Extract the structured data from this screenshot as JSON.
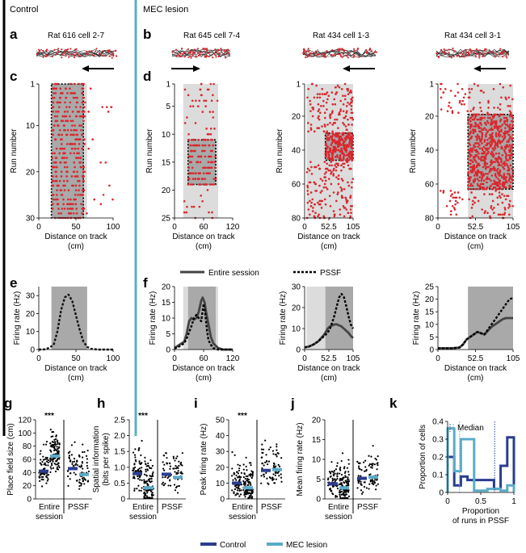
{
  "headers": {
    "control": "Control",
    "lesion": "MEC lesion"
  },
  "colors": {
    "spike_red": "#d9272e",
    "control_blue": "#2b3c8f",
    "lesion_cyan": "#5aacc8",
    "shade_light": "#dcdcdc",
    "shade_dark": "#a9a9a9"
  },
  "panel_letters": {
    "a": "a",
    "b": "b",
    "c": "c",
    "d": "d",
    "e": "e",
    "f": "f",
    "g": "g",
    "h": "h",
    "i": "i",
    "j": "j",
    "k": "k"
  },
  "cells": [
    {
      "title": "Rat 616 cell 2-7",
      "direction": "left"
    },
    {
      "title": "Rat 645 cell 7-4",
      "direction": "right"
    },
    {
      "title": "Rat 434 cell 1-3",
      "direction": "left"
    },
    {
      "title": "Rat 434 cell 3-1",
      "direction": "left"
    }
  ],
  "raster_plots": [
    {
      "ylabel": "Run number",
      "xlabel": "Distance on track",
      "xunit": "(cm)",
      "yticks": [
        "1",
        "10",
        "20",
        "30"
      ],
      "xticks": [
        "0",
        "50",
        "100"
      ],
      "ylim": [
        1,
        30
      ],
      "xlim": [
        0,
        100
      ]
    },
    {
      "ylabel": "Run number",
      "xlabel": "Distance on track",
      "xunit": "(cm)",
      "yticks": [
        "1",
        "5",
        "10",
        "15",
        "20",
        "25"
      ],
      "xticks": [
        "0",
        "60",
        "120"
      ],
      "ylim": [
        1,
        25
      ],
      "xlim": [
        0,
        120
      ]
    },
    {
      "ylabel": "Run number",
      "xlabel": "Distance on track",
      "xunit": "(cm)",
      "yticks": [
        "1",
        "20",
        "40",
        "60",
        "80"
      ],
      "xticks": [
        "0",
        "52.5",
        "105"
      ],
      "ylim": [
        1,
        80
      ],
      "xlim": [
        0,
        105
      ]
    },
    {
      "ylabel": "Run number",
      "xlabel": "Distance on track",
      "xunit": "(cm)",
      "yticks": [
        "1",
        "20",
        "40",
        "60",
        "80"
      ],
      "xticks": [
        "0",
        "52.5",
        "105"
      ],
      "ylim": [
        1,
        80
      ],
      "xlim": [
        0,
        105
      ]
    }
  ],
  "rate_legend": {
    "entire": "Entire session",
    "pssf": "PSSF"
  },
  "chart_data": [
    {
      "type": "line",
      "title": "Rat 616 cell 2-7",
      "ylabel": "Firing rate (Hz)",
      "xlabel": "Distance on track",
      "xunit": "(cm)",
      "ylim": [
        0,
        35
      ],
      "xlim": [
        0,
        100
      ],
      "yticks": [
        "0",
        "10",
        "20",
        "30"
      ],
      "xticks": [
        "0",
        "50",
        "100"
      ],
      "series": [
        {
          "name": "Entire session",
          "x": [
            0,
            10,
            20,
            25,
            30,
            35,
            40,
            45,
            50,
            55,
            60,
            65,
            70,
            80,
            90,
            100
          ],
          "y": [
            0,
            0.2,
            2.5,
            10,
            22,
            29,
            30.5,
            27,
            19,
            11,
            4.5,
            1.5,
            0.5,
            0,
            0,
            0
          ]
        }
      ]
    },
    {
      "type": "line",
      "title": "Rat 645 cell 7-4",
      "ylabel": "Firing rate (Hz)",
      "xlabel": "Distance on track",
      "xunit": "(cm)",
      "ylim": [
        0,
        20
      ],
      "xlim": [
        0,
        120
      ],
      "yticks": [
        "0",
        "5",
        "10",
        "15",
        "20"
      ],
      "xticks": [
        "0",
        "60",
        "120"
      ],
      "series": [
        {
          "name": "Entire session",
          "x": [
            0,
            10,
            20,
            25,
            30,
            35,
            40,
            45,
            50,
            55,
            58,
            62,
            65,
            70,
            75,
            80,
            90,
            100,
            110,
            120
          ],
          "y": [
            0.5,
            1.5,
            2.5,
            5,
            9,
            10,
            9.5,
            10,
            12,
            15.5,
            16.5,
            15,
            12,
            8,
            4,
            2,
            0.5,
            0,
            0,
            0
          ]
        },
        {
          "name": "PSSF",
          "x": [
            0,
            10,
            20,
            25,
            30,
            35,
            40,
            45,
            50,
            55,
            60,
            63,
            67,
            70,
            75,
            80,
            90,
            100,
            110,
            120
          ],
          "y": [
            0.3,
            1,
            2,
            3.5,
            5.5,
            7.5,
            10,
            11,
            10,
            9,
            14.5,
            12,
            6,
            3,
            1.5,
            0.5,
            0,
            0,
            0,
            0
          ]
        }
      ]
    },
    {
      "type": "line",
      "title": "Rat 434 cell 1-3",
      "ylabel": "Firing rate (Hz)",
      "xlabel": "Distance on track",
      "xunit": "(cm)",
      "ylim": [
        0,
        30
      ],
      "xlim": [
        0,
        105
      ],
      "yticks": [
        "0",
        "10",
        "20",
        "30"
      ],
      "xticks": [
        "0",
        "52.5",
        "105"
      ],
      "series": [
        {
          "name": "Entire session",
          "x": [
            0,
            10,
            20,
            30,
            40,
            45,
            50,
            55,
            60,
            65,
            70,
            75,
            80,
            85,
            90,
            95,
            100,
            105
          ],
          "y": [
            1,
            1.5,
            2.5,
            4,
            6.5,
            8,
            10,
            11,
            11.5,
            12,
            12,
            11.5,
            11,
            10,
            9,
            8,
            6.5,
            5.5
          ]
        },
        {
          "name": "PSSF",
          "x": [
            0,
            10,
            20,
            30,
            40,
            45,
            50,
            55,
            60,
            65,
            70,
            75,
            80,
            85,
            90,
            95,
            100,
            105
          ],
          "y": [
            1,
            1.5,
            2.5,
            4,
            6,
            7,
            8,
            10,
            13,
            16.5,
            21,
            25,
            26.5,
            25,
            21,
            16,
            12,
            10
          ]
        }
      ]
    },
    {
      "type": "line",
      "title": "Rat 434 cell 3-1",
      "ylabel": "Firing rate (Hz)",
      "xlabel": "Distance on track",
      "xunit": "(cm)",
      "ylim": [
        0,
        25
      ],
      "xlim": [
        0,
        105
      ],
      "yticks": [
        "0",
        "5",
        "10",
        "15",
        "20",
        "25"
      ],
      "xticks": [
        "0",
        "52.5",
        "105"
      ],
      "series": [
        {
          "name": "Entire session",
          "x": [
            0,
            10,
            20,
            30,
            35,
            40,
            45,
            50,
            55,
            60,
            65,
            70,
            75,
            80,
            85,
            90,
            95,
            100,
            105
          ],
          "y": [
            0.5,
            0.5,
            0.5,
            0.8,
            2,
            4,
            5,
            6,
            7,
            6.5,
            6,
            7.5,
            9,
            10,
            11,
            12,
            12.5,
            12.5,
            12.5
          ]
        },
        {
          "name": "PSSF",
          "x": [
            0,
            10,
            20,
            30,
            35,
            40,
            45,
            50,
            55,
            60,
            65,
            70,
            75,
            80,
            85,
            90,
            95,
            100,
            105
          ],
          "y": [
            0.5,
            0.5,
            0.5,
            0.8,
            2,
            4,
            5,
            6,
            7,
            6.5,
            6,
            8,
            10,
            12,
            14,
            16,
            18,
            20,
            20.5
          ]
        }
      ]
    },
    {
      "type": "scatter",
      "panel": "g",
      "ylabel": "Place field size (cm)",
      "ylim": [
        0,
        120
      ],
      "yticks": [
        "0",
        "20",
        "40",
        "60",
        "80",
        "100",
        "120"
      ],
      "xgroups": [
        "Entire session",
        "PSSF"
      ],
      "significance": "***",
      "means": {
        "Control": [
          42,
          46
        ],
        "MEC lesion": [
          65,
          37
        ]
      }
    },
    {
      "type": "scatter",
      "panel": "h",
      "ylabel": "Spatial information (bits per spike)",
      "ylim": [
        0,
        2.5
      ],
      "yticks": [
        "0",
        "0.5",
        "1.0",
        "1.5",
        "2.0",
        "2.5"
      ],
      "xgroups": [
        "Entire session",
        "PSSF"
      ],
      "significance": "***",
      "means": {
        "Control": [
          0.8,
          0.78
        ],
        "MEC lesion": [
          0.35,
          0.68
        ]
      }
    },
    {
      "type": "scatter",
      "panel": "i",
      "ylabel": "Peak firing rate (Hz)",
      "ylim": [
        0,
        50
      ],
      "yticks": [
        "0",
        "10",
        "20",
        "30",
        "40",
        "50"
      ],
      "xgroups": [
        "Entire session",
        "PSSF"
      ],
      "significance": "***",
      "means": {
        "Control": [
          10,
          18
        ],
        "MEC lesion": [
          7,
          18.5
        ]
      }
    },
    {
      "type": "scatter",
      "panel": "j",
      "ylabel": "Mean firing rate (Hz)",
      "ylim": [
        0,
        20
      ],
      "yticks": [
        "0",
        "5",
        "10",
        "15",
        "20"
      ],
      "xgroups": [
        "Entire session",
        "PSSF"
      ],
      "means": {
        "Control": [
          3.8,
          5.2
        ],
        "MEC lesion": [
          2.8,
          5.5
        ]
      }
    },
    {
      "type": "line",
      "panel": "k",
      "ylabel": "Proportion of cells",
      "xlabel": "Proportion",
      "xlabel2": "of runs in PSSF",
      "ylim": [
        0,
        0.4
      ],
      "xlim": [
        0,
        1
      ],
      "yticks": [
        "0",
        "0.1",
        "0.2",
        "0.3",
        "0.4"
      ],
      "xticks": [
        "0",
        "0.5",
        "1"
      ],
      "legend": "Median",
      "medians": {
        "Control": 0.71,
        "MEC lesion": 0.18
      },
      "series": [
        {
          "name": "Control",
          "bins": [
            0,
            0.1,
            0.2,
            0.3,
            0.4,
            0.5,
            0.6,
            0.7,
            0.8,
            0.9,
            1.0
          ],
          "values": [
            0.2,
            0.04,
            0.09,
            0.07,
            0.07,
            0.07,
            0.07,
            0.02,
            0.15,
            0.31
          ]
        },
        {
          "name": "MEC lesion",
          "bins": [
            0,
            0.1,
            0.2,
            0.3,
            0.4,
            0.5,
            0.6,
            0.7,
            0.8,
            0.9,
            1.0
          ],
          "values": [
            0.36,
            0.12,
            0.3,
            0.3,
            0.01,
            0.01,
            0.02,
            0.02,
            0.01,
            0.04
          ]
        }
      ]
    }
  ],
  "group_legend": {
    "control": "Control",
    "lesion": "MEC lesion"
  }
}
